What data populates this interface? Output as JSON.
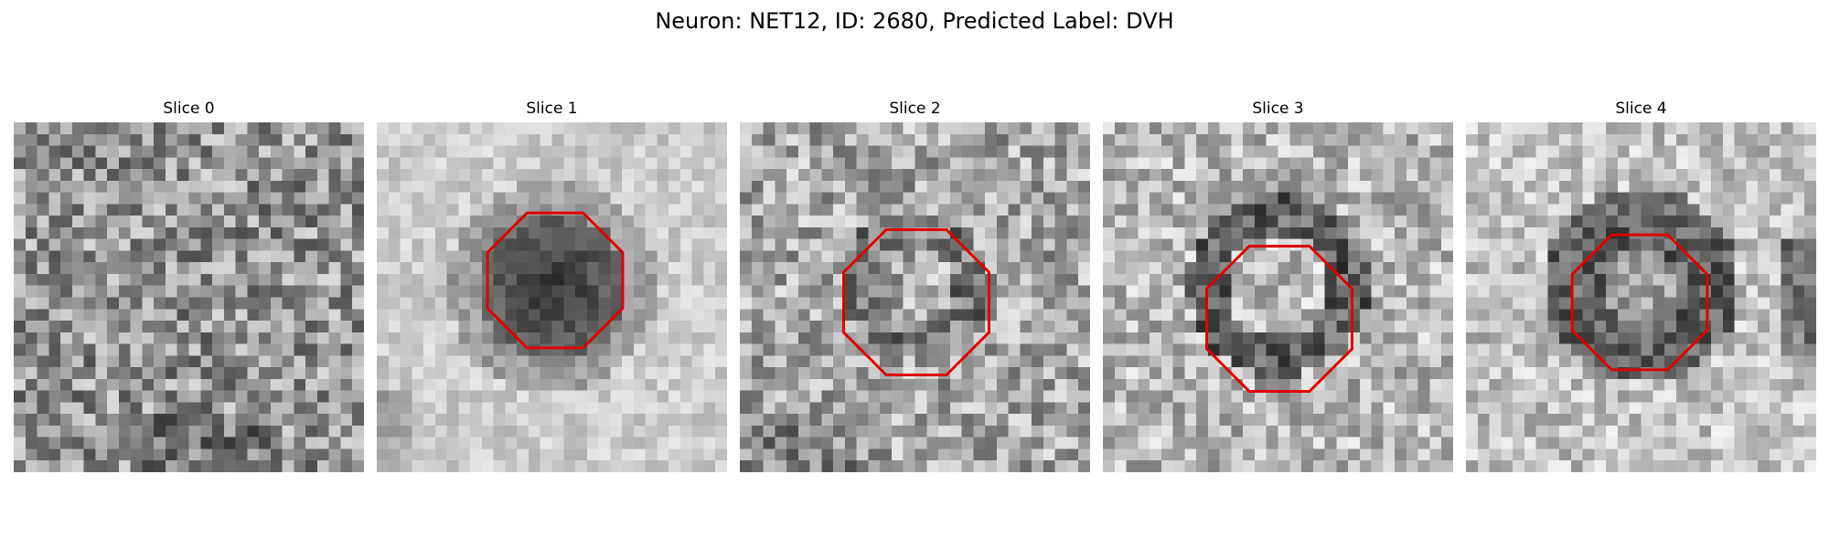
{
  "figure": {
    "title": "Neuron: NET12, ID: 2680, Predicted Label: DVH"
  },
  "panels": [
    {
      "title": "Slice 0",
      "roi": false,
      "pattern": "noise"
    },
    {
      "title": "Slice 1",
      "roi": true,
      "pattern": "dark-blob"
    },
    {
      "title": "Slice 2",
      "roi": true,
      "pattern": "faint-ring"
    },
    {
      "title": "Slice 3",
      "roi": true,
      "pattern": "dark-ring"
    },
    {
      "title": "Slice 4",
      "roi": true,
      "pattern": "dark-ring-strong"
    }
  ],
  "colors": {
    "roi_outline": "#e00000",
    "background": "#ffffff"
  }
}
